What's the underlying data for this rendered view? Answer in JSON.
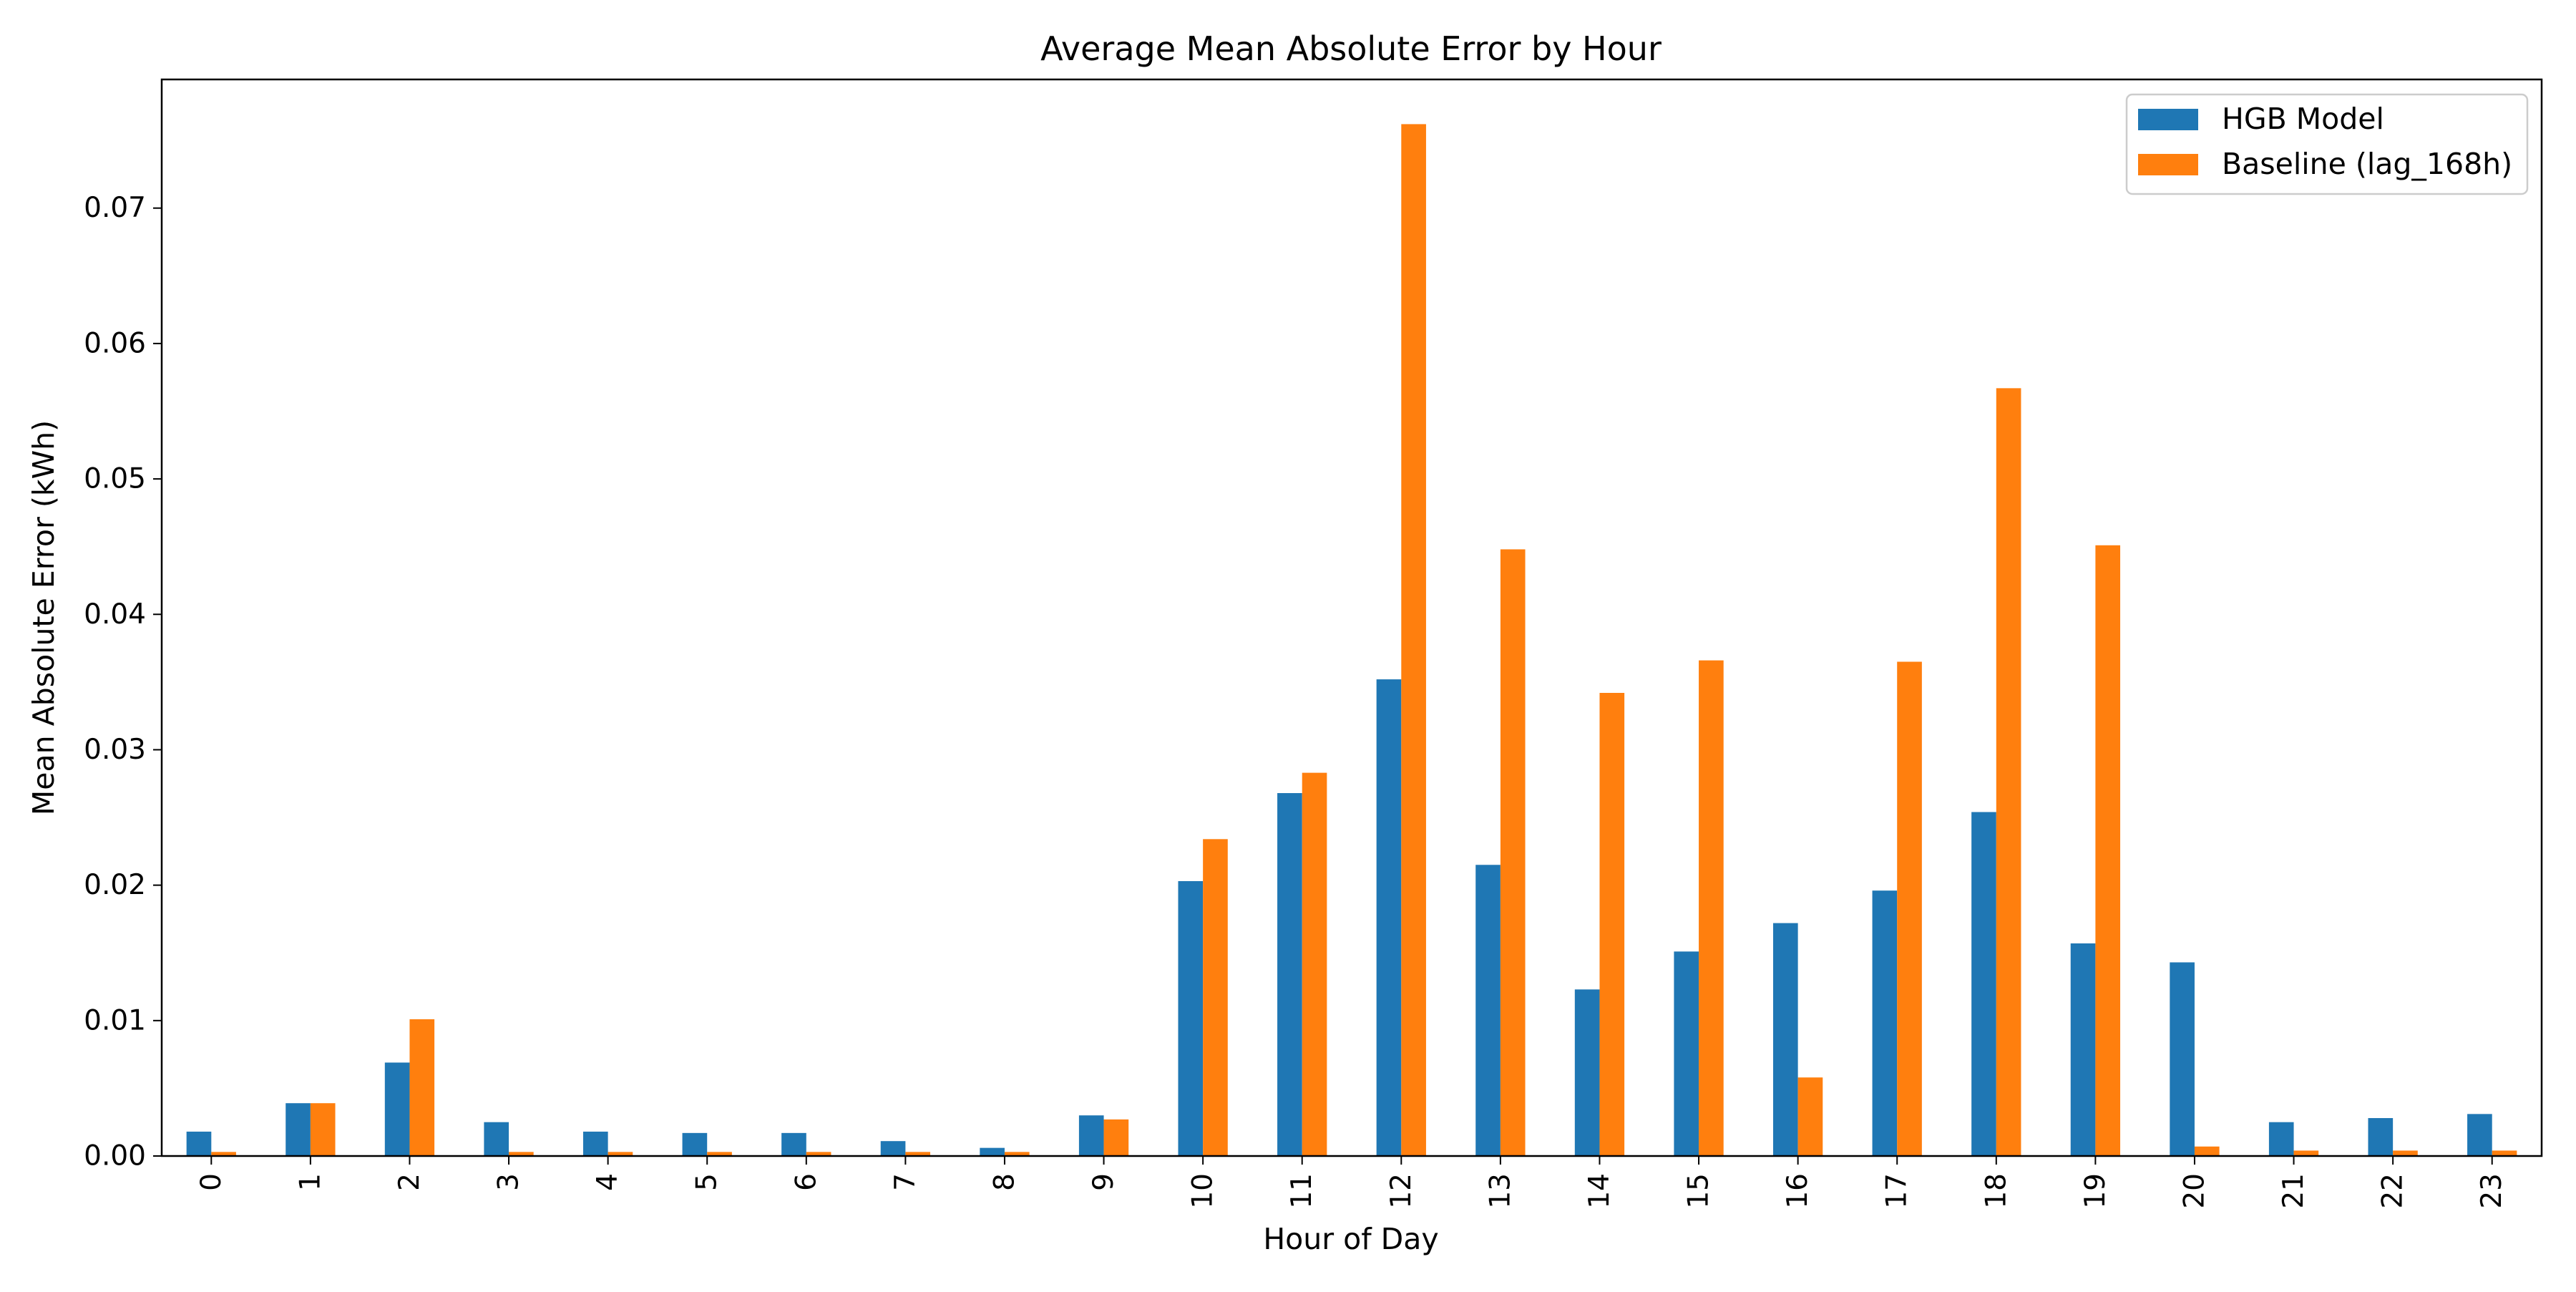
{
  "chart_data": {
    "type": "bar",
    "title": "Average Mean Absolute Error by Hour",
    "xlabel": "Hour of Day",
    "ylabel": "Mean Absolute Error (kWh)",
    "categories": [
      "0",
      "1",
      "2",
      "3",
      "4",
      "5",
      "6",
      "7",
      "8",
      "9",
      "10",
      "11",
      "12",
      "13",
      "14",
      "15",
      "16",
      "17",
      "18",
      "19",
      "20",
      "21",
      "22",
      "23"
    ],
    "series": [
      {
        "name": "HGB Model",
        "color": "#1f77b4",
        "values": [
          0.0018,
          0.0039,
          0.0069,
          0.0025,
          0.0018,
          0.0017,
          0.0017,
          0.0011,
          0.0006,
          0.003,
          0.0203,
          0.0268,
          0.0352,
          0.0215,
          0.0123,
          0.0151,
          0.0172,
          0.0196,
          0.0254,
          0.0157,
          0.0143,
          0.0025,
          0.0028,
          0.0031
        ]
      },
      {
        "name": "Baseline (lag_168h)",
        "color": "#ff7f0e",
        "values": [
          0.0003,
          0.0039,
          0.0101,
          0.0003,
          0.0003,
          0.0003,
          0.0003,
          0.0003,
          0.0003,
          0.0027,
          0.0234,
          0.0283,
          0.0762,
          0.0448,
          0.0342,
          0.0366,
          0.0058,
          0.0365,
          0.0567,
          0.0451,
          0.0007,
          0.0004,
          0.0004,
          0.0004
        ]
      }
    ],
    "ylim": [
      0,
      0.0795
    ],
    "yticks": [
      "0.00",
      "0.01",
      "0.02",
      "0.03",
      "0.04",
      "0.05",
      "0.06",
      "0.07"
    ],
    "ytick_values": [
      0,
      0.01,
      0.02,
      0.03,
      0.04,
      0.05,
      0.06,
      0.07
    ],
    "grid": false,
    "legend_position": "top-right"
  }
}
